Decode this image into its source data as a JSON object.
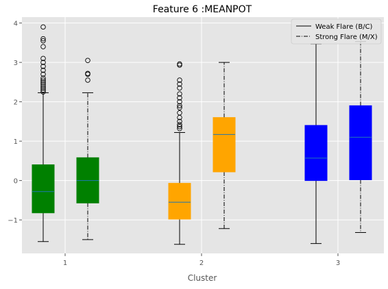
{
  "chart_data": {
    "type": "boxplot",
    "title": "Feature 6 :MEANPOT",
    "xlabel": "Cluster",
    "ylabel": "",
    "categories": [
      "1",
      "2",
      "3"
    ],
    "yticks": [
      "−1",
      "0",
      "1",
      "2",
      "3",
      "4"
    ],
    "ylim": [
      -1.85,
      4.15
    ],
    "grid": true,
    "legend_position": "top-right",
    "legend": [
      {
        "label": "Weak Flare (B/C)",
        "linestyle": "solid"
      },
      {
        "label": "Strong Flare (M/X)",
        "linestyle": "dashdot"
      }
    ],
    "colors": {
      "cluster1": "#008000",
      "cluster2": "#ffa500",
      "cluster3": "#0000ff",
      "median": "#1f77b4",
      "axes_bg": "#e5e5e5",
      "grid": "#ffffff"
    },
    "boxes": [
      {
        "cluster": "1",
        "series": "Weak Flare (B/C)",
        "whisker_low": -1.55,
        "q1": -0.82,
        "median": -0.28,
        "q3": 0.4,
        "whisker_high": 2.23,
        "outliers": [
          2.25,
          2.3,
          2.35,
          2.4,
          2.45,
          2.5,
          2.55,
          2.6,
          2.7,
          2.8,
          2.9,
          3.0,
          3.1,
          3.4,
          3.55,
          3.6,
          3.9
        ]
      },
      {
        "cluster": "1",
        "series": "Strong Flare (M/X)",
        "whisker_low": -1.5,
        "q1": -0.57,
        "median": 0.0,
        "q3": 0.58,
        "whisker_high": 2.23,
        "outliers": [
          2.55,
          2.7,
          2.72,
          3.05
        ]
      },
      {
        "cluster": "2",
        "series": "Weak Flare (B/C)",
        "whisker_low": -1.62,
        "q1": -0.98,
        "median": -0.55,
        "q3": -0.07,
        "whisker_high": 1.22,
        "outliers": [
          1.32,
          1.37,
          1.42,
          1.5,
          1.6,
          1.72,
          1.85,
          1.9,
          2.0,
          2.1,
          2.2,
          2.35,
          2.45,
          2.55,
          2.93,
          2.96
        ]
      },
      {
        "cluster": "2",
        "series": "Strong Flare (M/X)",
        "whisker_low": -1.22,
        "q1": 0.22,
        "median": 1.17,
        "q3": 1.6,
        "whisker_high": 3.0,
        "outliers": []
      },
      {
        "cluster": "3",
        "series": "Weak Flare (B/C)",
        "whisker_low": -1.6,
        "q1": 0.0,
        "median": 0.57,
        "q3": 1.4,
        "whisker_high": 3.47,
        "outliers": []
      },
      {
        "cluster": "3",
        "series": "Strong Flare (M/X)",
        "whisker_low": -1.32,
        "q1": 0.02,
        "median": 1.1,
        "q3": 1.9,
        "whisker_high": 3.53,
        "outliers": []
      }
    ]
  }
}
